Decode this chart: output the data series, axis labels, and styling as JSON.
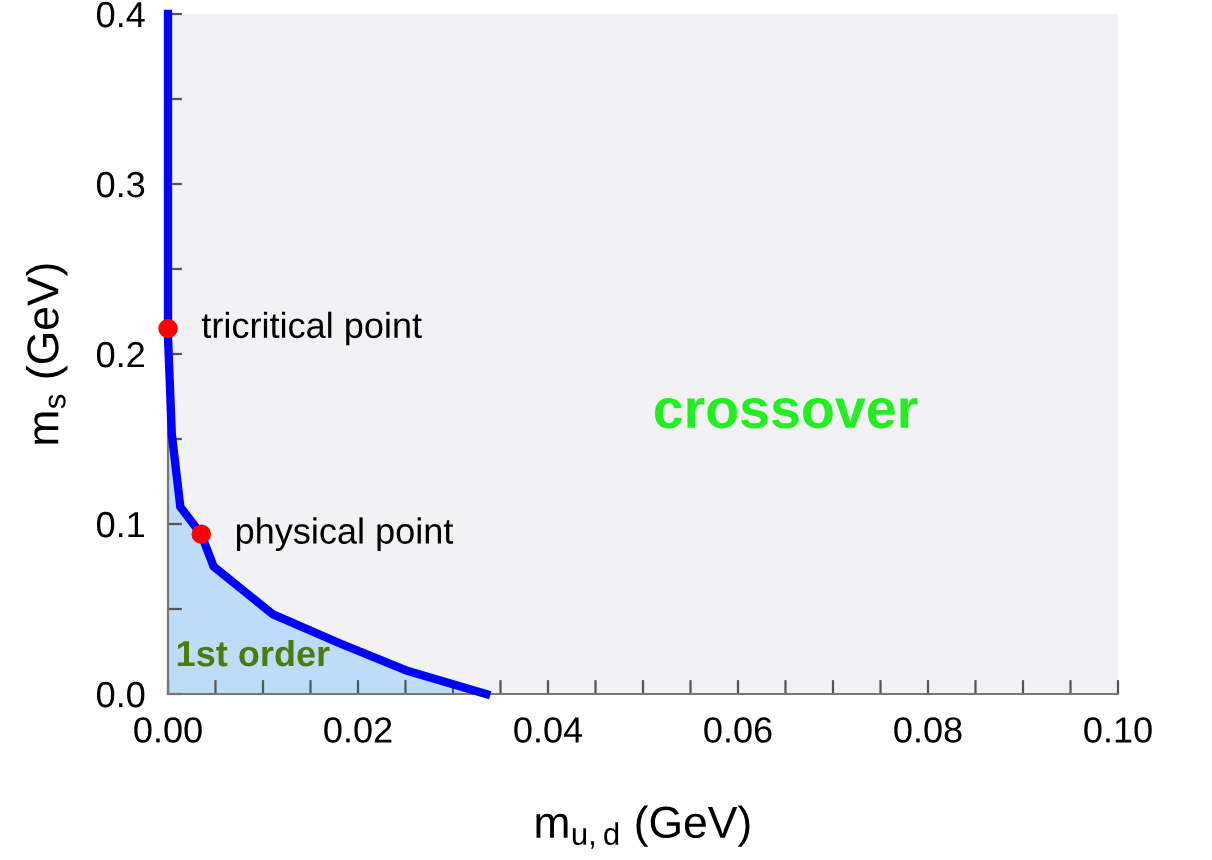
{
  "chart_data": {
    "type": "area",
    "xlabel": "m$_{u,d}$ (GeV)",
    "ylabel": "m$_{s}$ (GeV)",
    "xlim": [
      0,
      0.1
    ],
    "ylim": [
      0,
      0.4
    ],
    "xticks": [
      {
        "value": 0,
        "label": "0.00"
      },
      {
        "value": 0.005,
        "label": null
      },
      {
        "value": 0.01,
        "label": null
      },
      {
        "value": 0.015,
        "label": null
      },
      {
        "value": 0.02,
        "label": "0.02"
      },
      {
        "value": 0.025,
        "label": null
      },
      {
        "value": 0.03,
        "label": null
      },
      {
        "value": 0.035,
        "label": null
      },
      {
        "value": 0.04,
        "label": "0.04"
      },
      {
        "value": 0.045,
        "label": null
      },
      {
        "value": 0.05,
        "label": null
      },
      {
        "value": 0.055,
        "label": null
      },
      {
        "value": 0.06,
        "label": "0.06"
      },
      {
        "value": 0.065,
        "label": null
      },
      {
        "value": 0.07,
        "label": null
      },
      {
        "value": 0.075,
        "label": null
      },
      {
        "value": 0.08,
        "label": "0.08"
      },
      {
        "value": 0.085,
        "label": null
      },
      {
        "value": 0.09,
        "label": null
      },
      {
        "value": 0.095,
        "label": null
      },
      {
        "value": 0.1,
        "label": "0.10"
      }
    ],
    "yticks": [
      {
        "value": 0,
        "label": "0.0"
      },
      {
        "value": 0.05,
        "label": null
      },
      0.1,
      {
        "value": 0.15,
        "label": null
      },
      0.2,
      {
        "value": 0.25,
        "label": null
      },
      0.3,
      {
        "value": 0.35,
        "label": null
      },
      0.4
    ],
    "grid": false,
    "legend": false,
    "series": [
      {
        "color": "#bcdcf8",
        "x": [
          0,
          0,
          0.0004,
          0.0013,
          0.0035,
          0.0048,
          0.011,
          0.018,
          0.025,
          0.0335
        ],
        "values": [
          0.4,
          0.21,
          0.153,
          0.11,
          0.094,
          0.075,
          0.047,
          0.03,
          0.014,
          0
        ]
      },
      {
        "type": "scatter",
        "color": "#ff0000",
        "marker": "circle",
        "x": [
          0,
          0.0035
        ],
        "values": [
          0.215,
          0.094
        ]
      }
    ],
    "annotations": [
      {
        "text": "tricritical point",
        "x": 0,
        "y": 0.215
      },
      {
        "text": "physical point",
        "x": 0.0035,
        "y": 0.094
      },
      "crossover",
      "1st order"
    ]
  }
}
